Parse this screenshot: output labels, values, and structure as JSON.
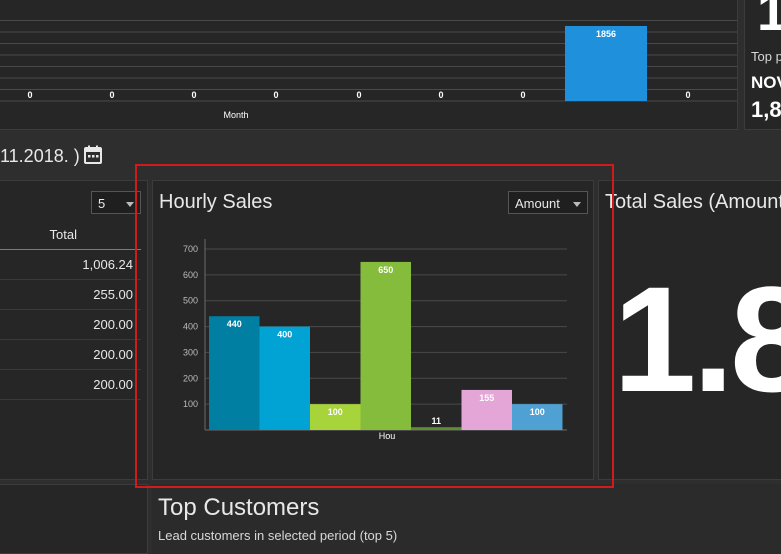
{
  "top_chart": {
    "xlabel": "Month",
    "values": [
      0,
      0,
      0,
      0,
      0,
      0,
      0,
      1856,
      0
    ],
    "bar_color": "#1e90dc"
  },
  "top_right": {
    "digit": "1",
    "label": "Top p",
    "month": "NOV",
    "value": "1,8"
  },
  "date_range": "11.2018. )",
  "left_table": {
    "page_size": "5",
    "header_total": "Total",
    "rows": [
      "1,006.24",
      "255.00",
      "200.00",
      "200.00",
      "200.00"
    ]
  },
  "hourly": {
    "title": "Hourly Sales",
    "select_value": "Amount",
    "chart_data": {
      "type": "bar",
      "xlabel": "Hou",
      "ylim": [
        0,
        700
      ],
      "yticks": [
        100,
        200,
        300,
        400,
        500,
        600,
        700
      ],
      "values": [
        440,
        400,
        100,
        650,
        11,
        155,
        100
      ],
      "colors": [
        "#007fa3",
        "#00a3d4",
        "#a6d43a",
        "#86bc3c",
        "#5e8c2e",
        "#e3a6d6",
        "#4fa1d3"
      ]
    }
  },
  "total_amount": {
    "title": "Total Sales (Amount)",
    "big_value": "1.8"
  },
  "top_customers": {
    "title": "Top Customers",
    "subtitle": "Lead customers in selected period (top 5)"
  }
}
